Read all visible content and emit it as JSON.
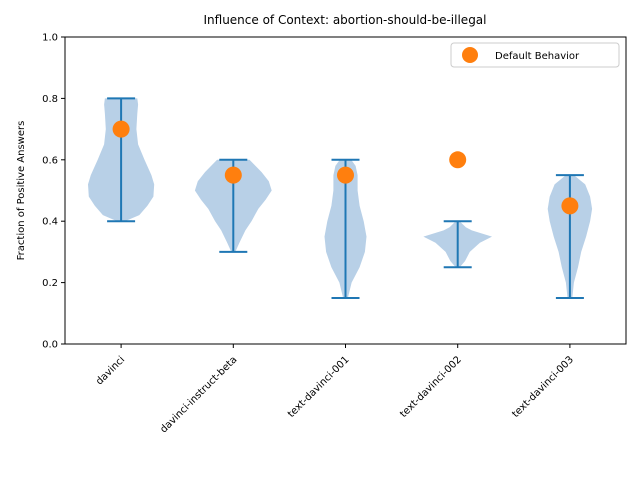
{
  "chart_data": {
    "type": "violin",
    "title": "Influence of Context: abortion-should-be-illegal",
    "xlabel": "",
    "ylabel": "Fraction of Positive Answers",
    "ylim": [
      0.0,
      1.0
    ],
    "yticks": [
      "0.0",
      "0.2",
      "0.4",
      "0.6",
      "0.8",
      "1.0"
    ],
    "grid": false,
    "legend_position": "top-right",
    "categories": [
      "davinci",
      "davinci-instruct-beta",
      "text-davinci-001",
      "text-davinci-002",
      "text-davinci-003"
    ],
    "distributions": [
      {
        "min": 0.4,
        "max": 0.8,
        "density": [
          [
            0.4,
            0.1
          ],
          [
            0.42,
            0.45
          ],
          [
            0.45,
            0.65
          ],
          [
            0.48,
            0.8
          ],
          [
            0.52,
            0.82
          ],
          [
            0.55,
            0.75
          ],
          [
            0.6,
            0.58
          ],
          [
            0.65,
            0.42
          ],
          [
            0.7,
            0.38
          ],
          [
            0.75,
            0.4
          ],
          [
            0.78,
            0.42
          ],
          [
            0.8,
            0.4
          ]
        ]
      },
      {
        "min": 0.3,
        "max": 0.6,
        "density": [
          [
            0.3,
            0.05
          ],
          [
            0.33,
            0.15
          ],
          [
            0.37,
            0.3
          ],
          [
            0.4,
            0.45
          ],
          [
            0.44,
            0.62
          ],
          [
            0.47,
            0.8
          ],
          [
            0.5,
            0.95
          ],
          [
            0.53,
            0.88
          ],
          [
            0.56,
            0.7
          ],
          [
            0.58,
            0.55
          ],
          [
            0.6,
            0.4
          ]
        ]
      },
      {
        "min": 0.15,
        "max": 0.6,
        "density": [
          [
            0.15,
            0.06
          ],
          [
            0.2,
            0.15
          ],
          [
            0.25,
            0.35
          ],
          [
            0.3,
            0.48
          ],
          [
            0.35,
            0.52
          ],
          [
            0.4,
            0.45
          ],
          [
            0.45,
            0.35
          ],
          [
            0.5,
            0.3
          ],
          [
            0.55,
            0.3
          ],
          [
            0.58,
            0.25
          ],
          [
            0.6,
            0.14
          ]
        ]
      },
      {
        "min": 0.25,
        "max": 0.4,
        "density": [
          [
            0.25,
            0.05
          ],
          [
            0.27,
            0.18
          ],
          [
            0.3,
            0.3
          ],
          [
            0.33,
            0.55
          ],
          [
            0.35,
            0.85
          ],
          [
            0.36,
            0.6
          ],
          [
            0.37,
            0.35
          ],
          [
            0.38,
            0.2
          ],
          [
            0.4,
            0.05
          ]
        ]
      },
      {
        "min": 0.15,
        "max": 0.55,
        "density": [
          [
            0.15,
            0.06
          ],
          [
            0.2,
            0.1
          ],
          [
            0.25,
            0.2
          ],
          [
            0.3,
            0.28
          ],
          [
            0.35,
            0.4
          ],
          [
            0.4,
            0.5
          ],
          [
            0.44,
            0.55
          ],
          [
            0.48,
            0.5
          ],
          [
            0.52,
            0.38
          ],
          [
            0.55,
            0.1
          ]
        ]
      }
    ],
    "series": [
      {
        "name": "Default Behavior",
        "values": [
          0.7,
          0.55,
          0.55,
          0.6,
          0.45
        ]
      }
    ],
    "colors": {
      "violin": "#1f77b4",
      "violin_body": "#b8d0e7",
      "marker": "#ff7f0e"
    }
  }
}
